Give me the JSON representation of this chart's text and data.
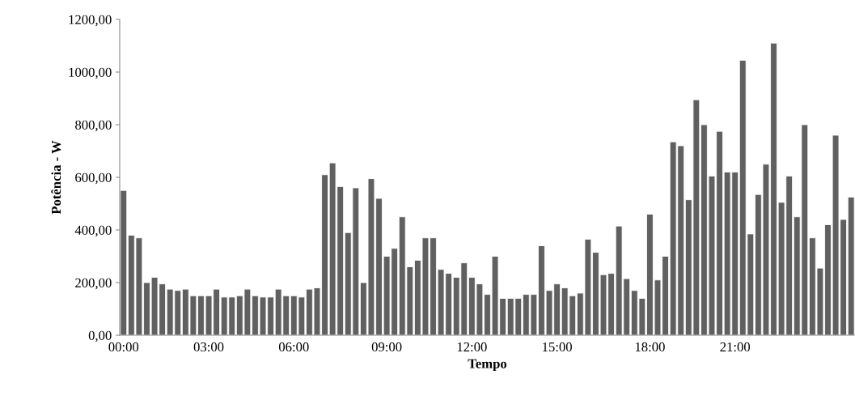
{
  "chart_data": {
    "type": "bar",
    "xlabel": "Tempo",
    "ylabel": "Potência - W",
    "categories": [
      "00:00",
      null,
      null,
      null,
      null,
      null,
      null,
      null,
      null,
      null,
      null,
      "03:00",
      null,
      null,
      null,
      null,
      null,
      null,
      null,
      null,
      null,
      null,
      "06:00",
      null,
      null,
      null,
      null,
      null,
      null,
      null,
      null,
      null,
      null,
      null,
      "09:00",
      null,
      null,
      null,
      null,
      null,
      null,
      null,
      null,
      null,
      null,
      "12:00",
      null,
      null,
      null,
      null,
      null,
      null,
      null,
      null,
      null,
      null,
      "15:00",
      null,
      null,
      null,
      null,
      null,
      null,
      null,
      null,
      null,
      null,
      null,
      "18:00",
      null,
      null,
      null,
      null,
      null,
      null,
      null,
      null,
      null,
      null,
      "21:00",
      null,
      null,
      null,
      null,
      null,
      null,
      null,
      null,
      null,
      null,
      null,
      null,
      null,
      null,
      null
    ],
    "values": [
      550,
      380,
      370,
      200,
      220,
      195,
      175,
      170,
      175,
      150,
      150,
      150,
      175,
      145,
      145,
      150,
      175,
      150,
      145,
      145,
      175,
      150,
      150,
      145,
      175,
      180,
      610,
      655,
      565,
      390,
      560,
      200,
      595,
      520,
      300,
      330,
      450,
      260,
      285,
      370,
      370,
      250,
      235,
      220,
      275,
      220,
      195,
      155,
      300,
      140,
      140,
      140,
      155,
      155,
      340,
      170,
      195,
      180,
      150,
      160,
      365,
      315,
      230,
      235,
      415,
      215,
      170,
      140,
      460,
      210,
      300,
      735,
      720,
      515,
      895,
      800,
      605,
      775,
      620,
      620,
      1045,
      385,
      535,
      650,
      1110,
      505,
      605,
      450,
      800,
      370,
      255,
      420,
      760,
      440,
      525
    ],
    "color": "#606060",
    "ylim": [
      0,
      1200
    ],
    "yticks": [
      {
        "value": 0,
        "label": "0,00"
      },
      {
        "value": 200,
        "label": "200,00"
      },
      {
        "value": 400,
        "label": "400,00"
      },
      {
        "value": 600,
        "label": "600,00"
      },
      {
        "value": 800,
        "label": "800,00"
      },
      {
        "value": 1000,
        "label": "1000,00"
      },
      {
        "value": 1200,
        "label": "1200,00"
      }
    ],
    "grid": false,
    "legend": false
  }
}
